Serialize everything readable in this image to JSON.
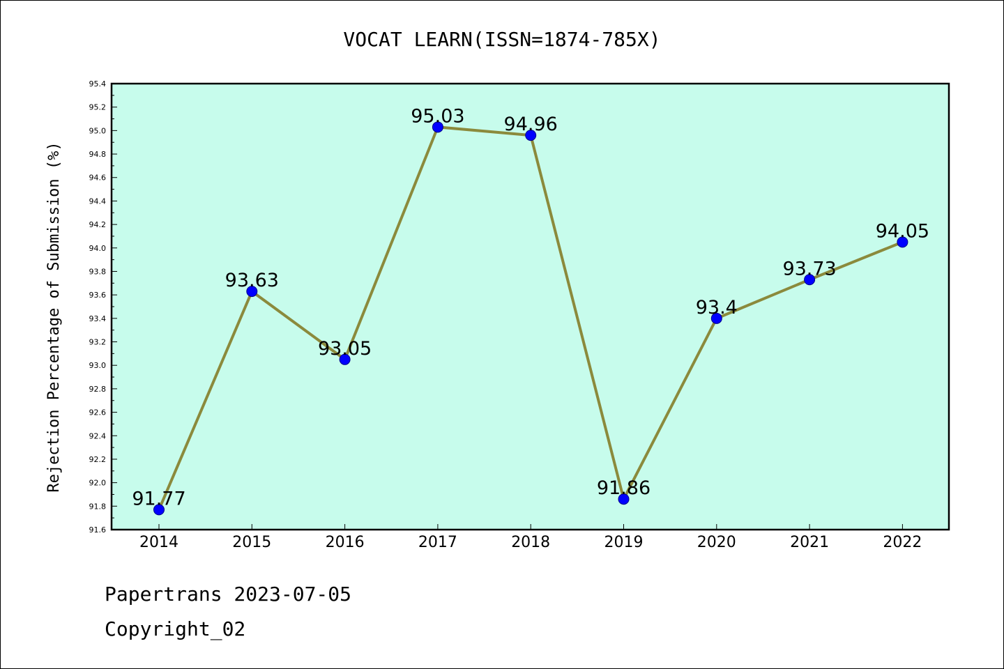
{
  "chart_data": {
    "type": "line",
    "title": "VOCAT LEARN(ISSN=1874-785X)",
    "xlabel": "",
    "ylabel": "Rejection Percentage of Submission (%)",
    "categories": [
      "2014",
      "2015",
      "2016",
      "2017",
      "2018",
      "2019",
      "2020",
      "2021",
      "2022"
    ],
    "series": [
      {
        "values": [
          91.77,
          93.63,
          93.05,
          95.03,
          94.96,
          91.86,
          93.4,
          93.73,
          94.05
        ],
        "data_labels": [
          "91.77",
          "93.63",
          "93.05",
          "95.03",
          "94.96",
          "91.86",
          "93.4",
          "93.73",
          "94.05"
        ],
        "line_color": "#8b8a3c",
        "marker_color": "#0000ff"
      }
    ],
    "ylim": [
      91.6,
      95.4
    ],
    "y_ticks": [
      "91.6",
      "91.8",
      "92.0",
      "92.2",
      "92.4",
      "92.6",
      "92.8",
      "93.0",
      "93.2",
      "93.4",
      "93.6",
      "93.8",
      "94.0",
      "94.2",
      "94.4",
      "94.6",
      "94.8",
      "95.0",
      "95.2",
      "95.4"
    ],
    "grid": false,
    "legend": "none",
    "plot_background": "#c7fcec"
  },
  "footer": {
    "line1": "Papertrans 2023-07-05",
    "line2": "Copyright_02"
  }
}
